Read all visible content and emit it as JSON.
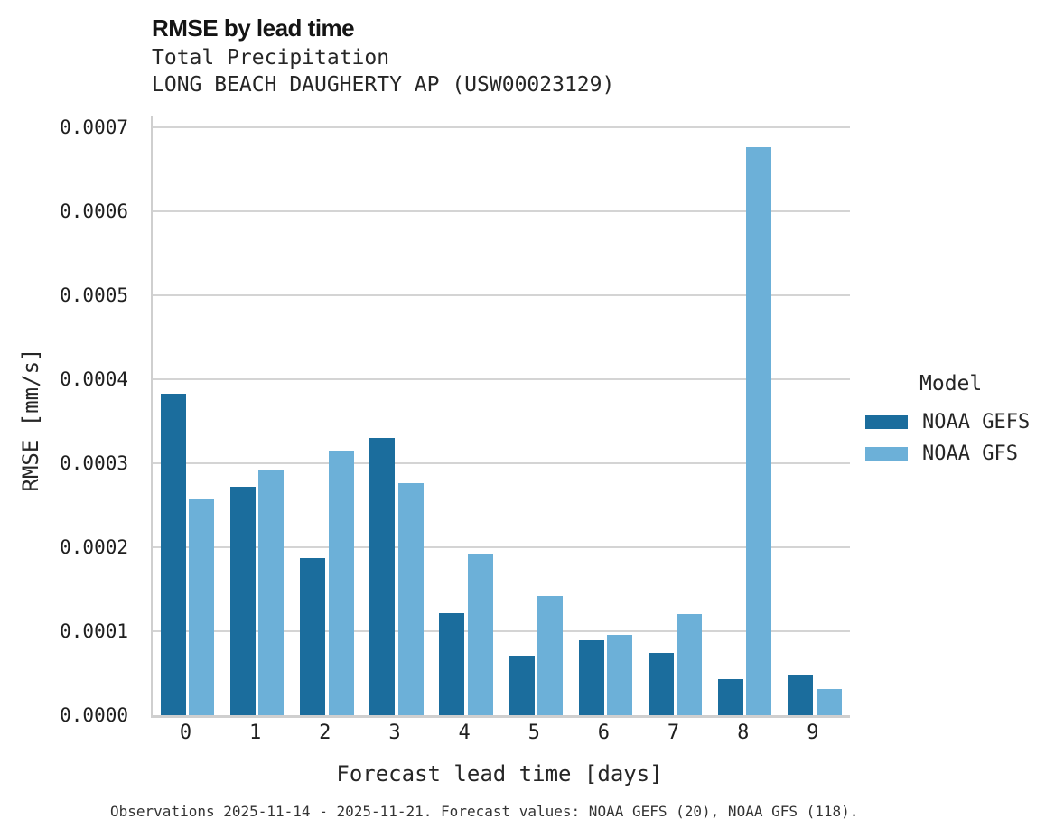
{
  "chart_data": {
    "type": "bar",
    "title": "RMSE by lead time",
    "subtitles": [
      "Total Precipitation",
      "LONG BEACH DAUGHERTY AP (USW00023129)"
    ],
    "xlabel": "Forecast lead time [days]",
    "ylabel": "RMSE [mm/s]",
    "categories": [
      "0",
      "1",
      "2",
      "3",
      "4",
      "5",
      "6",
      "7",
      "8",
      "9"
    ],
    "series": [
      {
        "name": "NOAA GEFS",
        "color": "#1b6d9d",
        "values": [
          0.000383,
          0.000272,
          0.000187,
          0.00033,
          0.000122,
          7e-05,
          8.9e-05,
          7.4e-05,
          4.3e-05,
          4.7e-05
        ]
      },
      {
        "name": "NOAA GFS",
        "color": "#6cb0d8",
        "values": [
          0.000257,
          0.000291,
          0.000315,
          0.000276,
          0.000191,
          0.000142,
          9.6e-05,
          0.00012,
          0.000676,
          3.1e-05
        ]
      }
    ],
    "ylim": [
      0,
      0.0007
    ],
    "ytick_labels": [
      "0.0000",
      "0.0001",
      "0.0002",
      "0.0003",
      "0.0004",
      "0.0005",
      "0.0006",
      "0.0007"
    ],
    "grid": "horizontal",
    "gridline_color": "#d4d4d4",
    "axis_color": "#cfcfcf",
    "legend_position": "right",
    "legend_title": "Model"
  },
  "footer": {
    "text": "Observations 2025-11-14 - 2025-11-21. Forecast values: NOAA GEFS (20), NOAA GFS (118)."
  }
}
